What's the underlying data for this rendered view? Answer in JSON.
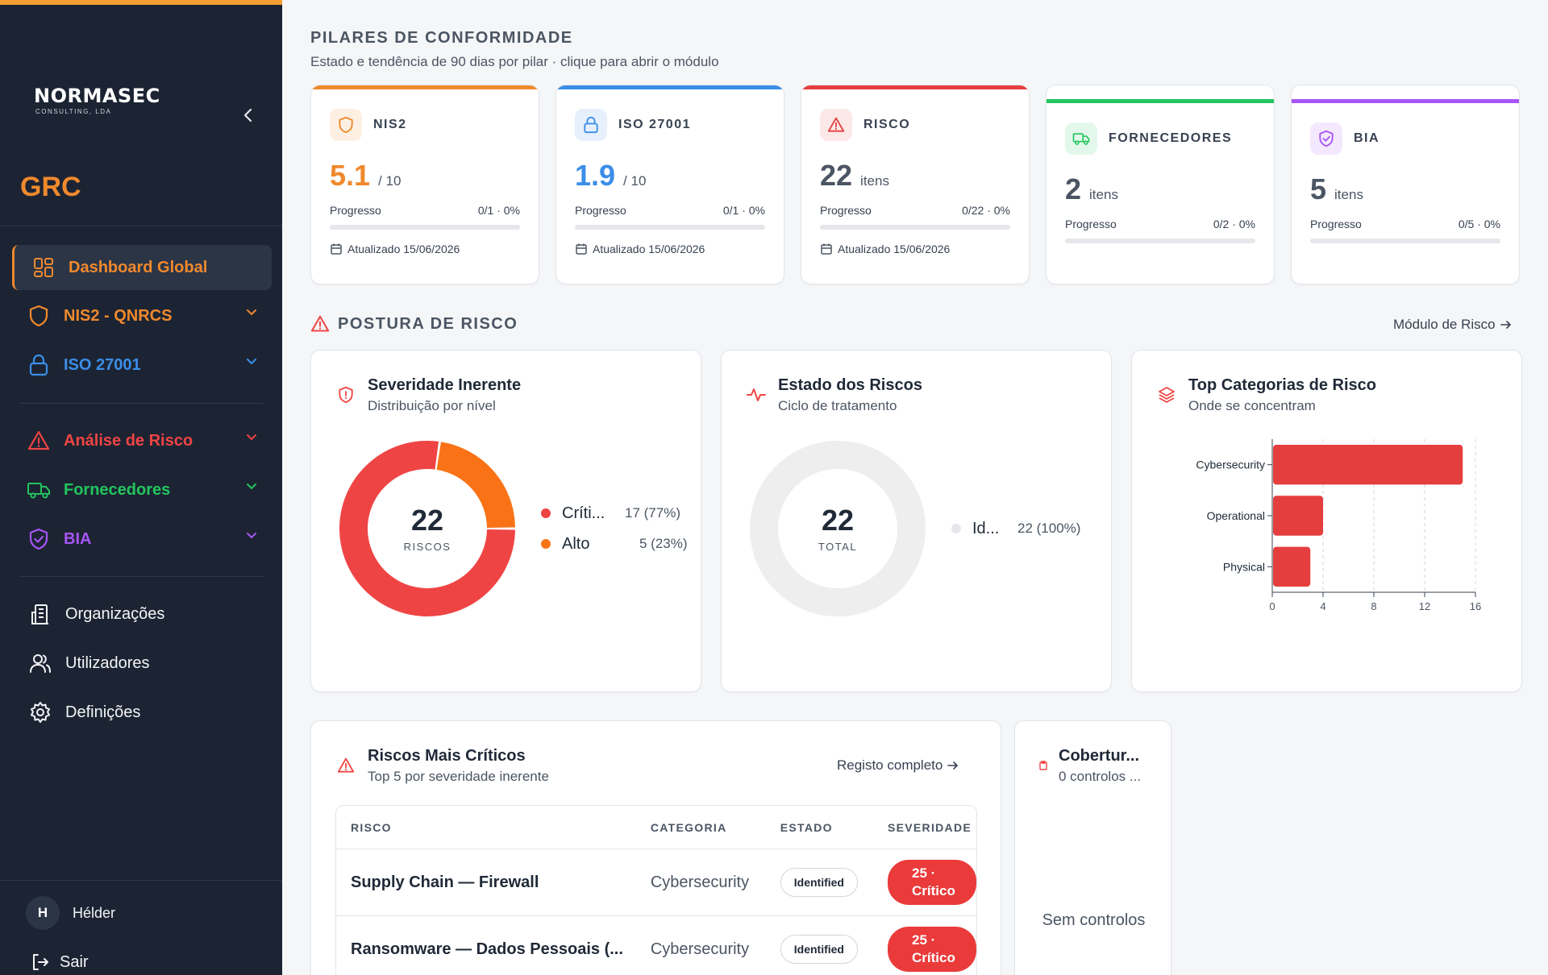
{
  "sidebar": {
    "logo_name": "NORMASEC",
    "logo_sub": "CONSULTING, LDA",
    "brand": "GRC",
    "nav": [
      {
        "label": "Dashboard Global",
        "color": "#f0892d"
      },
      {
        "label": "NIS2 - QNRCS",
        "color": "#f0892d"
      },
      {
        "label": "ISO 27001",
        "color": "#3b8ee8"
      },
      {
        "label": "Análise de Risco",
        "color": "#ef4444"
      },
      {
        "label": "Fornecedores",
        "color": "#22c55e"
      },
      {
        "label": "BIA",
        "color": "#a855f7"
      },
      {
        "label": "Organizações"
      },
      {
        "label": "Utilizadores"
      },
      {
        "label": "Definições"
      }
    ],
    "user_initial": "H",
    "user_name": "Hélder",
    "logout": "Sair"
  },
  "pillars_section": {
    "title": "PILARES DE CONFORMIDADE",
    "subtitle": "Estado e tendência de 90 dias por pilar · clique para abrir o módulo"
  },
  "pillars": [
    {
      "name": "NIS2",
      "value": "5.1",
      "unit": "/ 10",
      "progress_label": "Progresso",
      "progress_text": "0/1 · 0%",
      "progress": 0,
      "updated": "Atualizado 15/06/2026",
      "color": "#f0892d",
      "icon": "shield-icon"
    },
    {
      "name": "ISO 27001",
      "value": "1.9",
      "unit": "/ 10",
      "progress_label": "Progresso",
      "progress_text": "0/1 · 0%",
      "progress": 0,
      "updated": "Atualizado 15/06/2026",
      "color": "#3b8ee8",
      "icon": "lock-icon"
    },
    {
      "name": "RISCO",
      "value": "22",
      "unit": "itens",
      "progress_label": "Progresso",
      "progress_text": "0/22 · 0%",
      "progress": 0,
      "updated": "Atualizado 15/06/2026",
      "color": "#e53e3e",
      "icon": "warning-icon"
    },
    {
      "name": "FORNECEDORES",
      "value": "2",
      "unit": "itens",
      "progress_label": "Progresso",
      "progress_text": "0/2 · 0%",
      "progress": 0,
      "color": "#22c55e",
      "icon": "truck-icon"
    },
    {
      "name": "BIA",
      "value": "5",
      "unit": "itens",
      "progress_label": "Progresso",
      "progress_text": "0/5 · 0%",
      "progress": 0,
      "color": "#a855f7",
      "icon": "shield-check-icon"
    }
  ],
  "risk_section": {
    "title": "POSTURA DE RISCO",
    "link": "Módulo de Risco"
  },
  "severity_card": {
    "title": "Severidade Inerente",
    "subtitle": "Distribuição por nível",
    "total": "22",
    "total_label": "RISCOS",
    "legend": [
      {
        "name": "Críti...",
        "value": "17 (77%)",
        "color": "#ef4444"
      },
      {
        "name": "Alto",
        "value": "5 (23%)",
        "color": "#f97316"
      }
    ]
  },
  "state_card": {
    "title": "Estado dos Riscos",
    "subtitle": "Ciclo de tratamento",
    "total": "22",
    "total_label": "TOTAL",
    "legend": [
      {
        "name": "Id...",
        "value": "22 (100%)",
        "color": "#e5e7eb"
      }
    ]
  },
  "categories_card": {
    "title": "Top Categorias de Risco",
    "subtitle": "Onde se concentram"
  },
  "chart_data": [
    {
      "type": "pie",
      "categories": [
        "Críti...",
        "Alto"
      ],
      "values": [
        17,
        5
      ],
      "colors": [
        "#ef4444",
        "#f97316"
      ]
    },
    {
      "type": "pie",
      "categories": [
        "Id..."
      ],
      "values": [
        22
      ],
      "colors": [
        "#eeeeee"
      ]
    },
    {
      "type": "bar",
      "orientation": "horizontal",
      "categories": [
        "Cybersecurity",
        "Operational",
        "Physical"
      ],
      "values": [
        15,
        4,
        3
      ],
      "xlim": [
        0,
        16
      ],
      "xticks": [
        0,
        4,
        8,
        12,
        16
      ],
      "grid": true,
      "color": "#e53e3e"
    }
  ],
  "critical_card": {
    "title": "Riscos Mais Críticos",
    "subtitle": "Top 5 por severidade inerente",
    "link": "Registo completo",
    "columns": [
      "RISCO",
      "CATEGORIA",
      "ESTADO",
      "SEVERIDADE"
    ],
    "rows": [
      {
        "risk": "Supply Chain — Firewall",
        "category": "Cybersecurity",
        "state": "Identified",
        "severity_score": "25 ·",
        "severity_label": "Crítico"
      },
      {
        "risk": "Ransomware — Dados Pessoais (...",
        "category": "Cybersecurity",
        "state": "Identified",
        "severity_score": "25 ·",
        "severity_label": "Crítico"
      }
    ]
  },
  "coverage_card": {
    "title": "Cobertur...",
    "subtitle": "0 controlos ...",
    "empty": "Sem controlos"
  }
}
